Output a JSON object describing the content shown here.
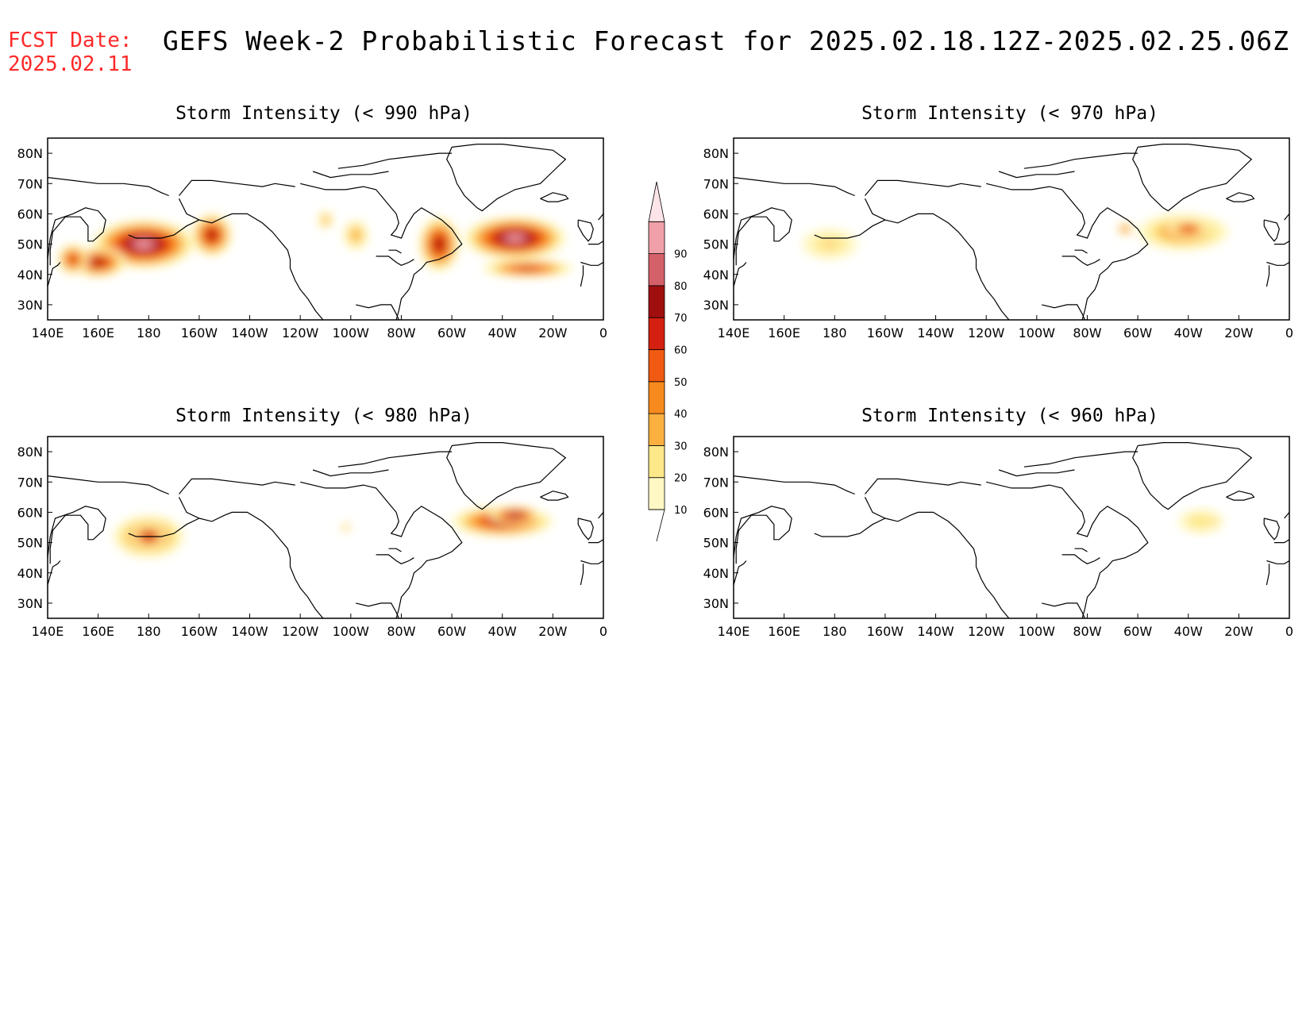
{
  "header": {
    "fcst_label": "FCST Date:",
    "fcst_date": "2025.02.11",
    "title": "GEFS Week-2 Probabilistic Forecast for 2025.02.18.12Z-2025.02.25.06Z"
  },
  "axes": {
    "lon_ticks": [
      "140E",
      "160E",
      "180",
      "160W",
      "140W",
      "120W",
      "100W",
      "80W",
      "60W",
      "40W",
      "20W",
      "0"
    ],
    "lat_ticks": [
      "80N",
      "70N",
      "60N",
      "50N",
      "40N",
      "30N"
    ],
    "lon_range": [
      140,
      360
    ],
    "lat_range": [
      25,
      85
    ]
  },
  "colorbar": {
    "levels": [
      "10",
      "20",
      "30",
      "40",
      "50",
      "60",
      "70",
      "80",
      "90"
    ],
    "colors": [
      "#fff8c4",
      "#fde88a",
      "#fbb040",
      "#f78a1c",
      "#f05a12",
      "#d42010",
      "#a00e0e",
      "#d4606a",
      "#f0a0a8",
      "#fde4e8"
    ]
  },
  "panels": [
    {
      "id": "p990",
      "title": "Storm Intensity (< 990 hPa)"
    },
    {
      "id": "p970",
      "title": "Storm Intensity (< 970 hPa)"
    },
    {
      "id": "p980",
      "title": "Storm Intensity (< 980 hPa)"
    },
    {
      "id": "p960",
      "title": "Storm Intensity (< 960 hPa)"
    }
  ],
  "map_data": {
    "p990": [
      {
        "lon": 178,
        "lat": 50,
        "sx": 20,
        "sy": 8,
        "level": 9
      },
      {
        "lon": 160,
        "lat": 44,
        "sx": 11,
        "sy": 5,
        "level": 7
      },
      {
        "lon": 150,
        "lat": 45,
        "sx": 6,
        "sy": 5,
        "level": 6
      },
      {
        "lon": 205,
        "lat": 53,
        "sx": 8,
        "sy": 7,
        "level": 7
      },
      {
        "lon": 250,
        "lat": 58,
        "sx": 3,
        "sy": 3,
        "level": 3
      },
      {
        "lon": 262,
        "lat": 53,
        "sx": 5,
        "sy": 5,
        "level": 3
      },
      {
        "lon": 295,
        "lat": 50,
        "sx": 8,
        "sy": 9,
        "level": 7
      },
      {
        "lon": 325,
        "lat": 52,
        "sx": 20,
        "sy": 7,
        "level": 9
      },
      {
        "lon": 330,
        "lat": 42,
        "sx": 18,
        "sy": 3,
        "level": 6
      }
    ],
    "p970": [
      {
        "lon": 178,
        "lat": 50,
        "sx": 11,
        "sy": 5,
        "level": 2
      },
      {
        "lon": 178,
        "lat": 50,
        "sx": 3,
        "sy": 1.5,
        "level": 4
      },
      {
        "lon": 318,
        "lat": 54,
        "sx": 18,
        "sy": 6,
        "level": 4
      },
      {
        "lon": 320,
        "lat": 55,
        "sx": 8,
        "sy": 3,
        "level": 6
      },
      {
        "lon": 295,
        "lat": 55,
        "sx": 3,
        "sy": 2,
        "level": 5
      }
    ],
    "p980": [
      {
        "lon": 180,
        "lat": 52,
        "sx": 14,
        "sy": 7,
        "level": 5
      },
      {
        "lon": 180,
        "lat": 52,
        "sx": 7,
        "sy": 4,
        "level": 7
      },
      {
        "lon": 320,
        "lat": 57,
        "sx": 20,
        "sy": 5,
        "level": 7
      },
      {
        "lon": 325,
        "lat": 59,
        "sx": 10,
        "sy": 3,
        "level": 8
      },
      {
        "lon": 258,
        "lat": 55,
        "sx": 2,
        "sy": 1.5,
        "level": 3
      }
    ],
    "p960": [
      {
        "lon": 325,
        "lat": 57,
        "sx": 9,
        "sy": 4,
        "level": 2
      },
      {
        "lon": 330,
        "lat": 57,
        "sx": 2,
        "sy": 1.5,
        "level": 3
      }
    ]
  }
}
